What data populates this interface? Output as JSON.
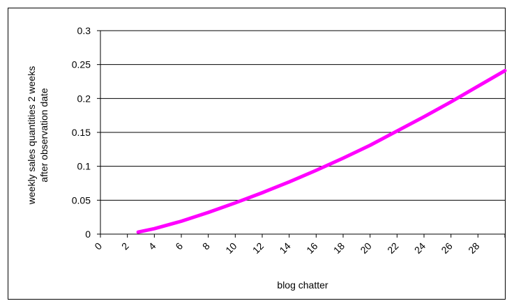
{
  "chart_data": {
    "type": "line",
    "xlabel": "blog chatter",
    "ylabel_lines": [
      "weekly sales quantities 2 weeks",
      "after observation date"
    ],
    "xlim": [
      0,
      30
    ],
    "ylim": [
      0,
      0.3
    ],
    "grid": true,
    "x_tick_labels": [
      "0",
      "2",
      "4",
      "6",
      "8",
      "10",
      "12",
      "14",
      "16",
      "18",
      "20",
      "22",
      "24",
      "26",
      "28"
    ],
    "y_tick_labels": [
      "0",
      "0.05",
      "0.1",
      "0.15",
      "0.2",
      "0.25",
      "0.3"
    ],
    "series": [
      {
        "color": "#ff00ff",
        "x": [
          2.8,
          4,
          6,
          8,
          10,
          12,
          14,
          16,
          18,
          20,
          22,
          24,
          26,
          28,
          30
        ],
        "y": [
          0.003,
          0.008,
          0.019,
          0.032,
          0.046,
          0.061,
          0.077,
          0.094,
          0.112,
          0.131,
          0.152,
          0.173,
          0.195,
          0.218,
          0.241
        ]
      }
    ]
  }
}
